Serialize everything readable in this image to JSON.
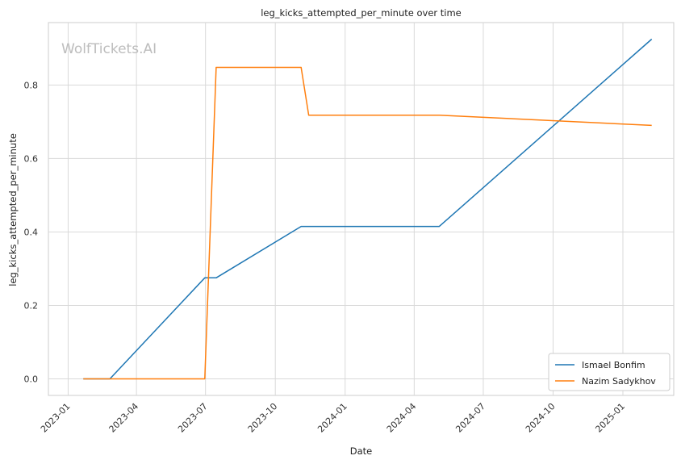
{
  "chart_data": {
    "type": "line",
    "title": "leg_kicks_attempted_per_minute over time",
    "xlabel": "Date",
    "ylabel": "leg_kicks_attempted_per_minute",
    "watermark": "WolfTickets.AI",
    "x_ticks": [
      "2023-01",
      "2023-04",
      "2023-07",
      "2023-10",
      "2024-01",
      "2024-04",
      "2024-07",
      "2024-10",
      "2025-01"
    ],
    "y_ticks": [
      "0.0",
      "0.2",
      "0.4",
      "0.6",
      "0.8"
    ],
    "xlim": [
      "2022-12-06",
      "2025-03-09"
    ],
    "ylim": [
      -0.045,
      0.97
    ],
    "grid": true,
    "legend_position": "lower-right",
    "series": [
      {
        "name": "Ismael Bonfim",
        "color": "#1f77b4",
        "points": [
          {
            "date": "2023-01-21",
            "value": 0.0
          },
          {
            "date": "2023-02-25",
            "value": 0.0
          },
          {
            "date": "2023-06-30",
            "value": 0.275
          },
          {
            "date": "2023-07-15",
            "value": 0.275
          },
          {
            "date": "2023-11-04",
            "value": 0.415
          },
          {
            "date": "2024-05-04",
            "value": 0.415
          },
          {
            "date": "2025-02-08",
            "value": 0.925
          }
        ]
      },
      {
        "name": "Nazim Sadykhov",
        "color": "#ff7f0e",
        "points": [
          {
            "date": "2023-01-21",
            "value": 0.0
          },
          {
            "date": "2023-06-30",
            "value": 0.0
          },
          {
            "date": "2023-07-15",
            "value": 0.848
          },
          {
            "date": "2023-11-04",
            "value": 0.848
          },
          {
            "date": "2023-11-14",
            "value": 0.718
          },
          {
            "date": "2024-05-04",
            "value": 0.718
          },
          {
            "date": "2025-02-08",
            "value": 0.69
          }
        ]
      }
    ]
  }
}
